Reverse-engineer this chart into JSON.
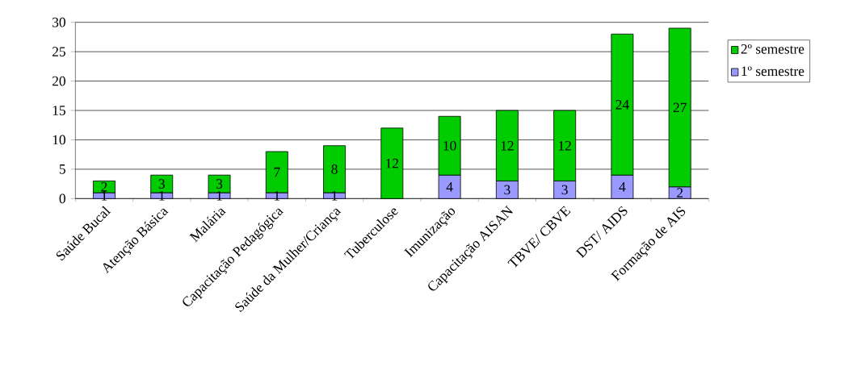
{
  "chart_data": {
    "type": "bar",
    "stacked": true,
    "categories": [
      "Saúde Bucal",
      "Atenção Básica",
      "Malária",
      "Capacitação Pedagógica",
      "Saúde da Mulher/Criança",
      "Tuberculose",
      "Imunização",
      "Capacitação AISAN",
      "TBVE/ CBVE",
      "DST/ AIDS",
      "Formação de AIS"
    ],
    "series": [
      {
        "name": "1º semestre",
        "color": "#9999ff",
        "values": [
          1,
          1,
          1,
          1,
          1,
          null,
          4,
          3,
          3,
          4,
          2
        ]
      },
      {
        "name": "2º semestre",
        "color": "#00cc00",
        "values": [
          2,
          3,
          3,
          7,
          8,
          12,
          10,
          12,
          12,
          24,
          27
        ]
      }
    ],
    "ylim": [
      0,
      30
    ],
    "yticks": [
      0,
      5,
      10,
      15,
      20,
      25,
      30
    ],
    "grid": "y",
    "legend": "right",
    "data_labels": true
  }
}
